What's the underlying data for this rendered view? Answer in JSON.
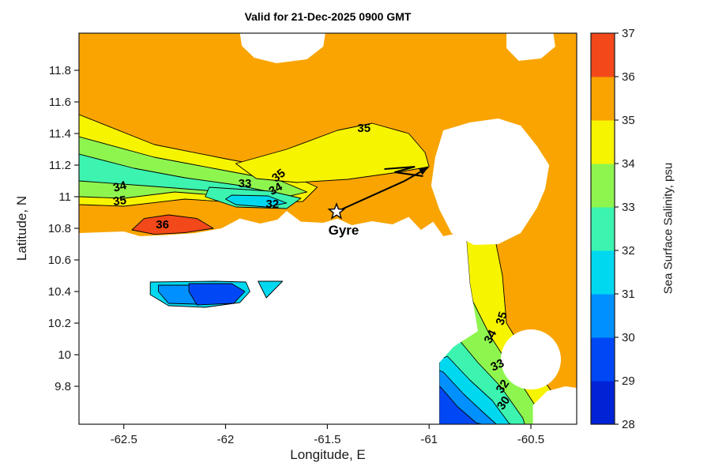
{
  "figure": {
    "title": "Valid for 21-Dec-2025 0900 GMT",
    "xlabel": "Longitude, E",
    "ylabel": "Latitude, N"
  },
  "chart_data": {
    "type": "heatmap",
    "subtype": "filled_contour_map",
    "title": "Valid for 21-Dec-2025 0900 GMT",
    "xlabel": "Longitude, E",
    "ylabel": "Latitude, N",
    "xlim": [
      -62.72,
      -60.275
    ],
    "ylim": [
      9.56,
      12.035
    ],
    "xticks": [
      -62.5,
      -62,
      -61.5,
      -61,
      -60.5
    ],
    "xtick_labels": [
      "-62.5",
      "-62",
      "-61.5",
      "-61",
      "-60.5"
    ],
    "yticks": [
      9.8,
      10,
      10.2,
      10.4,
      10.6,
      10.8,
      11,
      11.2,
      11.4,
      11.6,
      11.8
    ],
    "ytick_labels": [
      "9.8",
      "10",
      "10.2",
      "10.4",
      "10.6",
      "10.8",
      "11",
      "11.2",
      "11.4",
      "11.6",
      "11.8"
    ],
    "colorbar": {
      "label": "Sea Surface Salinity, psu",
      "ticks": [
        28,
        29,
        30,
        31,
        32,
        33,
        34,
        35,
        36,
        37
      ],
      "tick_labels": [
        "28",
        "29",
        "30",
        "31",
        "32",
        "33",
        "34",
        "35",
        "36",
        "37"
      ],
      "bands": [
        {
          "range": "28-29",
          "color": "#0023D6"
        },
        {
          "range": "29-30",
          "color": "#0048F5"
        },
        {
          "range": "30-31",
          "color": "#0090FF"
        },
        {
          "range": "31-32",
          "color": "#00D8F0"
        },
        {
          "range": "32-33",
          "color": "#3CF4B0"
        },
        {
          "range": "33-34",
          "color": "#8EF54E"
        },
        {
          "range": "34-35",
          "color": "#F7F400"
        },
        {
          "range": "35-36",
          "color": "#F9A400"
        },
        {
          "range": "36-37",
          "color": "#F2481A"
        }
      ]
    },
    "regions": [
      {
        "name": "ocean-base",
        "v": 35.5,
        "base": true,
        "points": [
          [
            -62.72,
            12.035
          ],
          [
            -60.275,
            12.035
          ],
          [
            -60.275,
            9.56
          ],
          [
            -62.72,
            9.56
          ]
        ]
      },
      {
        "name": "nw-band-34-35",
        "v": 34.5,
        "points": [
          [
            -62.72,
            11.52
          ],
          [
            -62.35,
            11.33
          ],
          [
            -62.0,
            11.24
          ],
          [
            -61.75,
            11.18
          ],
          [
            -61.55,
            11.06
          ],
          [
            -61.62,
            10.97
          ],
          [
            -61.9,
            10.96
          ],
          [
            -62.2,
            10.985
          ],
          [
            -62.5,
            10.94
          ],
          [
            -62.72,
            10.95
          ]
        ]
      },
      {
        "name": "nw-band-33-34",
        "v": 33.5,
        "points": [
          [
            -62.72,
            11.38
          ],
          [
            -62.35,
            11.25
          ],
          [
            -62.0,
            11.165
          ],
          [
            -61.73,
            11.1
          ],
          [
            -61.6,
            11.03
          ],
          [
            -61.7,
            11.0
          ],
          [
            -61.95,
            11.0
          ],
          [
            -62.25,
            11.03
          ],
          [
            -62.5,
            10.99
          ],
          [
            -62.72,
            11.0
          ]
        ]
      },
      {
        "name": "nw-band-32-33",
        "v": 32.5,
        "points": [
          [
            -62.72,
            11.27
          ],
          [
            -62.45,
            11.18
          ],
          [
            -62.2,
            11.12
          ],
          [
            -61.95,
            11.075
          ],
          [
            -61.78,
            11.03
          ],
          [
            -61.88,
            11.015
          ],
          [
            -62.1,
            11.04
          ],
          [
            -62.35,
            11.065
          ],
          [
            -62.72,
            11.1
          ]
        ]
      },
      {
        "name": "mid-patch-32-33",
        "v": 32.5,
        "points": [
          [
            -62.08,
            11.06
          ],
          [
            -61.78,
            11.035
          ],
          [
            -61.63,
            10.99
          ],
          [
            -61.7,
            10.925
          ],
          [
            -61.95,
            10.935
          ],
          [
            -62.1,
            11.0
          ]
        ]
      },
      {
        "name": "mid-patch-31-32",
        "v": 31.5,
        "points": [
          [
            -61.97,
            11.01
          ],
          [
            -61.79,
            11.005
          ],
          [
            -61.7,
            10.96
          ],
          [
            -61.8,
            10.935
          ],
          [
            -61.95,
            10.95
          ],
          [
            -62.0,
            10.985
          ]
        ]
      },
      {
        "name": "top-yellow-34-35",
        "v": 34.5,
        "points": [
          [
            -61.95,
            11.21
          ],
          [
            -61.7,
            11.3
          ],
          [
            -61.45,
            11.42
          ],
          [
            -61.28,
            11.465
          ],
          [
            -61.1,
            11.4
          ],
          [
            -61.02,
            11.28
          ],
          [
            -61.0,
            11.19
          ],
          [
            -61.15,
            11.155
          ],
          [
            -61.4,
            11.11
          ],
          [
            -61.65,
            11.09
          ],
          [
            -61.85,
            11.115
          ]
        ]
      },
      {
        "name": "east-strip-34-35",
        "v": 34.5,
        "points": [
          [
            -60.82,
            10.78
          ],
          [
            -60.68,
            10.76
          ],
          [
            -60.64,
            10.5
          ],
          [
            -60.62,
            10.2
          ],
          [
            -60.5,
            9.95
          ],
          [
            -60.36,
            9.7
          ],
          [
            -60.33,
            9.56
          ],
          [
            -60.95,
            9.56
          ],
          [
            -60.95,
            9.95
          ],
          [
            -60.88,
            10.05
          ],
          [
            -60.76,
            10.15
          ],
          [
            -60.8,
            10.45
          ]
        ]
      },
      {
        "name": "se-band-33-34",
        "v": 33.5,
        "points": [
          [
            -60.79,
            10.35
          ],
          [
            -60.7,
            10.12
          ],
          [
            -60.58,
            9.88
          ],
          [
            -60.47,
            9.66
          ],
          [
            -60.45,
            9.56
          ],
          [
            -60.95,
            9.56
          ],
          [
            -60.95,
            9.97
          ],
          [
            -60.86,
            10.06
          ],
          [
            -60.78,
            10.18
          ]
        ]
      },
      {
        "name": "se-band-32-33",
        "v": 32.5,
        "points": [
          [
            -60.87,
            10.12
          ],
          [
            -60.76,
            9.95
          ],
          [
            -60.65,
            9.8
          ],
          [
            -60.54,
            9.6
          ],
          [
            -60.53,
            9.56
          ],
          [
            -60.95,
            9.56
          ],
          [
            -60.95,
            10.02
          ]
        ]
      },
      {
        "name": "se-band-31-32",
        "v": 31.5,
        "points": [
          [
            -60.91,
            9.99
          ],
          [
            -60.8,
            9.84
          ],
          [
            -60.69,
            9.71
          ],
          [
            -60.61,
            9.57
          ],
          [
            -60.6,
            9.56
          ],
          [
            -60.95,
            9.56
          ],
          [
            -60.95,
            9.97
          ]
        ]
      },
      {
        "name": "se-band-30-31",
        "v": 30.5,
        "points": [
          [
            -60.93,
            9.89
          ],
          [
            -60.83,
            9.75
          ],
          [
            -60.73,
            9.63
          ],
          [
            -60.67,
            9.56
          ],
          [
            -60.95,
            9.56
          ],
          [
            -60.95,
            9.9
          ]
        ]
      },
      {
        "name": "se-band-29-30",
        "v": 29.5,
        "points": [
          [
            -60.94,
            9.79
          ],
          [
            -60.86,
            9.67
          ],
          [
            -60.77,
            9.57
          ],
          [
            -60.74,
            9.56
          ],
          [
            -60.95,
            9.56
          ],
          [
            -60.95,
            9.8
          ]
        ]
      },
      {
        "name": "land-mask-central",
        "v": null,
        "points": [
          [
            -62.72,
            10.77
          ],
          [
            -62.5,
            10.78
          ],
          [
            -62.42,
            10.75
          ],
          [
            -62.3,
            10.757
          ],
          [
            -62.15,
            10.77
          ],
          [
            -62.02,
            10.8
          ],
          [
            -61.93,
            10.862
          ],
          [
            -61.83,
            10.83
          ],
          [
            -61.745,
            10.855
          ],
          [
            -61.7,
            10.91
          ],
          [
            -61.63,
            10.842
          ],
          [
            -61.52,
            10.835
          ],
          [
            -61.45,
            10.862
          ],
          [
            -61.38,
            10.82
          ],
          [
            -61.28,
            10.845
          ],
          [
            -61.18,
            10.825
          ],
          [
            -61.1,
            10.872
          ],
          [
            -61.04,
            10.79
          ],
          [
            -60.98,
            10.842
          ],
          [
            -60.93,
            10.75
          ],
          [
            -60.82,
            10.78
          ],
          [
            -60.8,
            10.45
          ],
          [
            -60.76,
            10.15
          ],
          [
            -60.88,
            10.05
          ],
          [
            -60.95,
            9.95
          ],
          [
            -60.95,
            9.56
          ],
          [
            -62.72,
            9.56
          ]
        ]
      },
      {
        "name": "mask-right-blob",
        "v": null,
        "points": [
          [
            -60.99,
            11.07
          ],
          [
            -60.97,
            11.25
          ],
          [
            -60.93,
            11.42
          ],
          [
            -60.8,
            11.47
          ],
          [
            -60.66,
            11.495
          ],
          [
            -60.55,
            11.45
          ],
          [
            -60.47,
            11.32
          ],
          [
            -60.41,
            11.2
          ],
          [
            -60.43,
            11.05
          ],
          [
            -60.47,
            10.93
          ],
          [
            -60.55,
            10.77
          ],
          [
            -60.66,
            10.7
          ],
          [
            -60.78,
            10.695
          ],
          [
            -60.89,
            10.77
          ],
          [
            -60.95,
            10.92
          ]
        ]
      },
      {
        "name": "mask-top-center",
        "v": null,
        "points": [
          [
            -61.93,
            12.035
          ],
          [
            -61.51,
            12.035
          ],
          [
            -61.52,
            11.95
          ],
          [
            -61.6,
            11.87
          ],
          [
            -61.75,
            11.845
          ],
          [
            -61.86,
            11.88
          ],
          [
            -61.92,
            11.955
          ]
        ]
      },
      {
        "name": "mask-top-right",
        "v": null,
        "points": [
          [
            -60.62,
            12.035
          ],
          [
            -60.39,
            12.035
          ],
          [
            -60.38,
            11.95
          ],
          [
            -60.45,
            11.875
          ],
          [
            -60.56,
            11.86
          ],
          [
            -60.62,
            11.94
          ]
        ]
      },
      {
        "name": "mask-se-circle",
        "v": null,
        "circle": [
          -60.5,
          9.97
        ],
        "rpx": 38
      },
      {
        "name": "mask-se-corner",
        "v": null,
        "points": [
          [
            -60.49,
            9.56
          ],
          [
            -60.49,
            9.68
          ],
          [
            -60.42,
            9.77
          ],
          [
            -60.33,
            9.8
          ],
          [
            -60.275,
            9.79
          ],
          [
            -60.275,
            9.56
          ]
        ]
      },
      {
        "name": "coast-patch-36-37",
        "v": 36.5,
        "points": [
          [
            -62.46,
            10.79
          ],
          [
            -62.4,
            10.862
          ],
          [
            -62.28,
            10.885
          ],
          [
            -62.14,
            10.862
          ],
          [
            -62.06,
            10.8
          ],
          [
            -62.2,
            10.772
          ],
          [
            -62.35,
            10.762
          ]
        ]
      },
      {
        "name": "gulf-patch-31-32",
        "v": 31.5,
        "points": [
          [
            -62.37,
            10.46
          ],
          [
            -62.05,
            10.465
          ],
          [
            -61.9,
            10.46
          ],
          [
            -61.88,
            10.4
          ],
          [
            -61.93,
            10.33
          ],
          [
            -62.1,
            10.3
          ],
          [
            -62.28,
            10.31
          ],
          [
            -62.37,
            10.38
          ]
        ]
      },
      {
        "name": "gulf-patch-30-31",
        "v": 30.5,
        "points": [
          [
            -62.33,
            10.44
          ],
          [
            -62.16,
            10.44
          ],
          [
            -62.14,
            10.32
          ],
          [
            -62.28,
            10.325
          ],
          [
            -62.33,
            10.4
          ]
        ]
      },
      {
        "name": "gulf-patch-29-30",
        "v": 29.5,
        "points": [
          [
            -62.18,
            10.45
          ],
          [
            -61.97,
            10.45
          ],
          [
            -61.905,
            10.4
          ],
          [
            -61.96,
            10.325
          ],
          [
            -62.14,
            10.315
          ],
          [
            -62.18,
            10.4
          ]
        ]
      },
      {
        "name": "gulf-triangle-31-32",
        "v": 31.5,
        "points": [
          [
            -61.84,
            10.465
          ],
          [
            -61.72,
            10.465
          ],
          [
            -61.8,
            10.36
          ]
        ]
      }
    ],
    "contour_labels": [
      {
        "text": "34",
        "lon": -62.52,
        "lat": 11.065,
        "rot": -14
      },
      {
        "text": "35",
        "lon": -62.52,
        "lat": 10.975,
        "rot": -8
      },
      {
        "text": "36",
        "lon": -62.31,
        "lat": 10.825,
        "rot": 0
      },
      {
        "text": "33",
        "lon": -61.905,
        "lat": 11.085,
        "rot": 0
      },
      {
        "text": "35",
        "lon": -61.74,
        "lat": 11.135,
        "rot": -38
      },
      {
        "text": "34",
        "lon": -61.755,
        "lat": 11.05,
        "rot": -30
      },
      {
        "text": "32",
        "lon": -61.77,
        "lat": 10.955,
        "rot": 0
      },
      {
        "text": "35",
        "lon": -61.32,
        "lat": 11.435,
        "rot": 0
      },
      {
        "text": "35",
        "lon": -60.645,
        "lat": 10.23,
        "rot": -72
      },
      {
        "text": "34",
        "lon": -60.7,
        "lat": 10.115,
        "rot": -62
      },
      {
        "text": "33",
        "lon": -60.665,
        "lat": 9.935,
        "rot": -25
      },
      {
        "text": "32",
        "lon": -60.64,
        "lat": 9.8,
        "rot": -55
      },
      {
        "text": "30",
        "lon": -60.635,
        "lat": 9.695,
        "rot": -55
      }
    ],
    "annotation": {
      "label": "Gyre",
      "star": [
        -61.455,
        10.905
      ],
      "label_at": [
        -61.42,
        10.76
      ],
      "arrow": [
        [
          -61.43,
          10.92
        ],
        [
          -61.12,
          11.1
        ],
        [
          -61.005,
          11.185
        ]
      ],
      "zigzag": [
        [
          -61.03,
          11.13
        ],
        [
          -61.17,
          11.155
        ],
        [
          -61.07,
          11.19
        ],
        [
          -61.22,
          11.175
        ]
      ]
    }
  }
}
